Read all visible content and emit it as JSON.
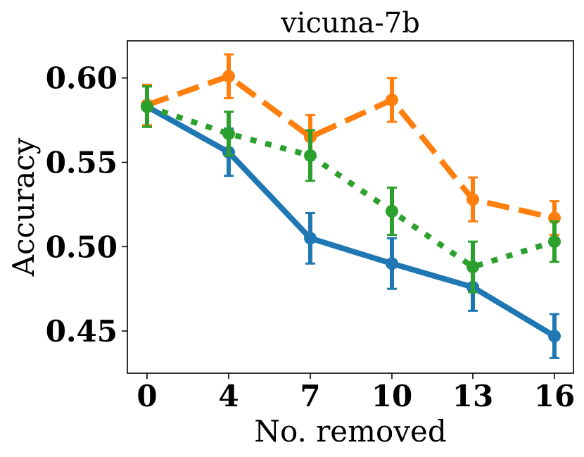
{
  "chart_data": {
    "type": "line",
    "title": "vicuna-7b",
    "xlabel": "No. removed",
    "ylabel": "Accuracy",
    "categories": [
      "0",
      "4",
      "7",
      "10",
      "13",
      "16"
    ],
    "ylim": [
      0.425,
      0.622
    ],
    "yticks": [
      "0.45",
      "0.50",
      "0.55",
      "0.60"
    ],
    "grid": false,
    "series": [
      {
        "name": "blue-solid",
        "color": "#1f77b4",
        "dash": "solid",
        "values": [
          0.583,
          0.556,
          0.505,
          0.49,
          0.476,
          0.447
        ],
        "err": [
          0.012,
          0.014,
          0.015,
          0.015,
          0.014,
          0.013
        ]
      },
      {
        "name": "orange-dashed",
        "color": "#ff7f0e",
        "dash": "dashed",
        "values": [
          0.584,
          0.601,
          0.565,
          0.587,
          0.528,
          0.517
        ],
        "err": [
          0.012,
          0.013,
          0.013,
          0.013,
          0.013,
          0.01
        ]
      },
      {
        "name": "green-dotted",
        "color": "#2ca02c",
        "dash": "dotted",
        "values": [
          0.583,
          0.567,
          0.554,
          0.521,
          0.488,
          0.503
        ],
        "err": [
          0.012,
          0.013,
          0.015,
          0.014,
          0.015,
          0.012
        ]
      }
    ]
  }
}
